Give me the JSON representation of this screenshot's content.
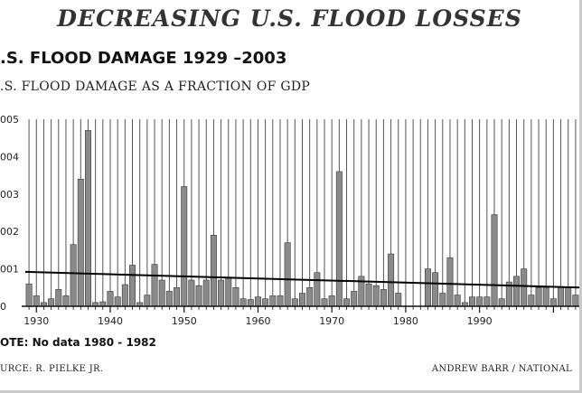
{
  "header": {
    "title": "DECREASING U.S. FLOOD LOSSES",
    "chart_title": ".S. FLOOD DAMAGE 1929 –2003",
    "subtitle": ".S. FLOOD DAMAGE AS A FRACTION OF GDP"
  },
  "footer": {
    "note_prefix": "OTE",
    "note_text": ": No data 1980 - 1982",
    "source": "URCE: R. PIELKE JR.",
    "credit": "ANDREW BARR / NATIONAL"
  },
  "colors": {
    "bar_fill": "#8a8a8a",
    "bar_stroke": "#3a3a3a",
    "trend": "#000000",
    "grid": "#555555"
  },
  "chart_data": {
    "type": "bar",
    "title": ".S. FLOOD DAMAGE 1929 –2003",
    "subtitle": ".S. FLOOD DAMAGE AS A FRACTION OF GDP",
    "xlabel": "",
    "ylabel": "",
    "ylim": [
      0,
      0.005
    ],
    "y_tick_labels": [
      "0",
      "001",
      "002",
      "003",
      "004",
      "005"
    ],
    "y_tick_values": [
      0,
      0.001,
      0.002,
      0.003,
      0.004,
      0.005
    ],
    "x_tick_labels": [
      "1930",
      "1940",
      "1950",
      "1960",
      "1970",
      "1980",
      "1990"
    ],
    "x_tick_values": [
      1930,
      1940,
      1950,
      1960,
      1970,
      1980,
      1990
    ],
    "grid": true,
    "no_data_years": [
      1980,
      1981,
      1982
    ],
    "trend_line": {
      "x": [
        1929,
        2003
      ],
      "y": [
        0.00092,
        0.0005
      ]
    },
    "x": [
      1929,
      1930,
      1931,
      1932,
      1933,
      1934,
      1935,
      1936,
      1937,
      1938,
      1939,
      1940,
      1941,
      1942,
      1943,
      1944,
      1945,
      1946,
      1947,
      1948,
      1949,
      1950,
      1951,
      1952,
      1953,
      1954,
      1955,
      1956,
      1957,
      1958,
      1959,
      1960,
      1961,
      1962,
      1963,
      1964,
      1965,
      1966,
      1967,
      1968,
      1969,
      1970,
      1971,
      1972,
      1973,
      1974,
      1975,
      1976,
      1977,
      1978,
      1979,
      1980,
      1981,
      1982,
      1983,
      1984,
      1985,
      1986,
      1987,
      1988,
      1989,
      1990,
      1991,
      1992,
      1993,
      1994,
      1995,
      1996,
      1997,
      1998,
      1999,
      2000,
      2001,
      2002,
      2003
    ],
    "values": [
      0.0006,
      0.00028,
      0.0001,
      0.0002,
      0.00045,
      0.00028,
      0.00165,
      0.0034,
      0.0047,
      0.0001,
      0.00012,
      0.0004,
      0.00025,
      0.00058,
      0.0011,
      0.0001,
      0.0003,
      0.00112,
      0.0007,
      0.0004,
      0.0005,
      0.0032,
      0.0007,
      0.00055,
      0.0007,
      0.0019,
      0.0007,
      0.00075,
      0.0005,
      0.0002,
      0.00018,
      0.00025,
      0.0002,
      0.00028,
      0.00028,
      0.0017,
      0.0002,
      0.00035,
      0.0005,
      0.0009,
      0.0002,
      0.00028,
      0.0036,
      0.0002,
      0.0004,
      0.0008,
      0.0006,
      0.00055,
      0.00045,
      0.0014,
      0.00035,
      0,
      0,
      0,
      0.001,
      0.0009,
      0.00035,
      0.0013,
      0.0003,
      0.0001,
      0.00025,
      0.00025,
      0.00025,
      0.00245,
      0.0002,
      0.00065,
      0.0008,
      0.001,
      0.0003,
      0.0005,
      0.0005,
      0.0002,
      0.0005,
      0.0005,
      0.0003
    ]
  }
}
